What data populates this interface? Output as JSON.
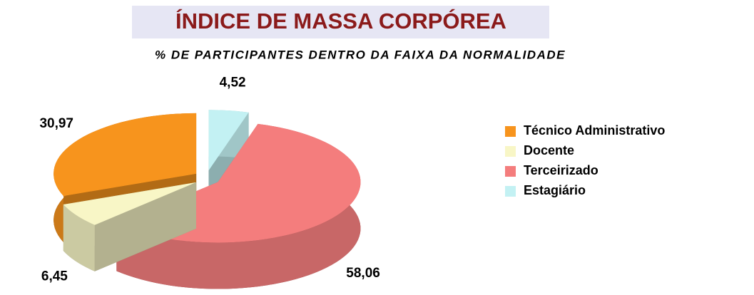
{
  "chart_data": {
    "type": "pie3d",
    "title": "ÍNDICE DE MASSA CORPÓREA",
    "subtitle": "% DE PARTICIPANTES DENTRO DA FAIXA DA NORMALIDADE",
    "categories": [
      "Técnico Administrativo",
      "Docente",
      "Terceirizado",
      "Estagiário"
    ],
    "values": [
      30.97,
      6.45,
      58.06,
      4.52
    ],
    "value_labels": [
      "30,97",
      "6,45",
      "58,06",
      "4,52"
    ],
    "colors": [
      "#f7941d",
      "#f8f6c6",
      "#f47d7d",
      "#c3f1f3"
    ],
    "legend": "right"
  }
}
